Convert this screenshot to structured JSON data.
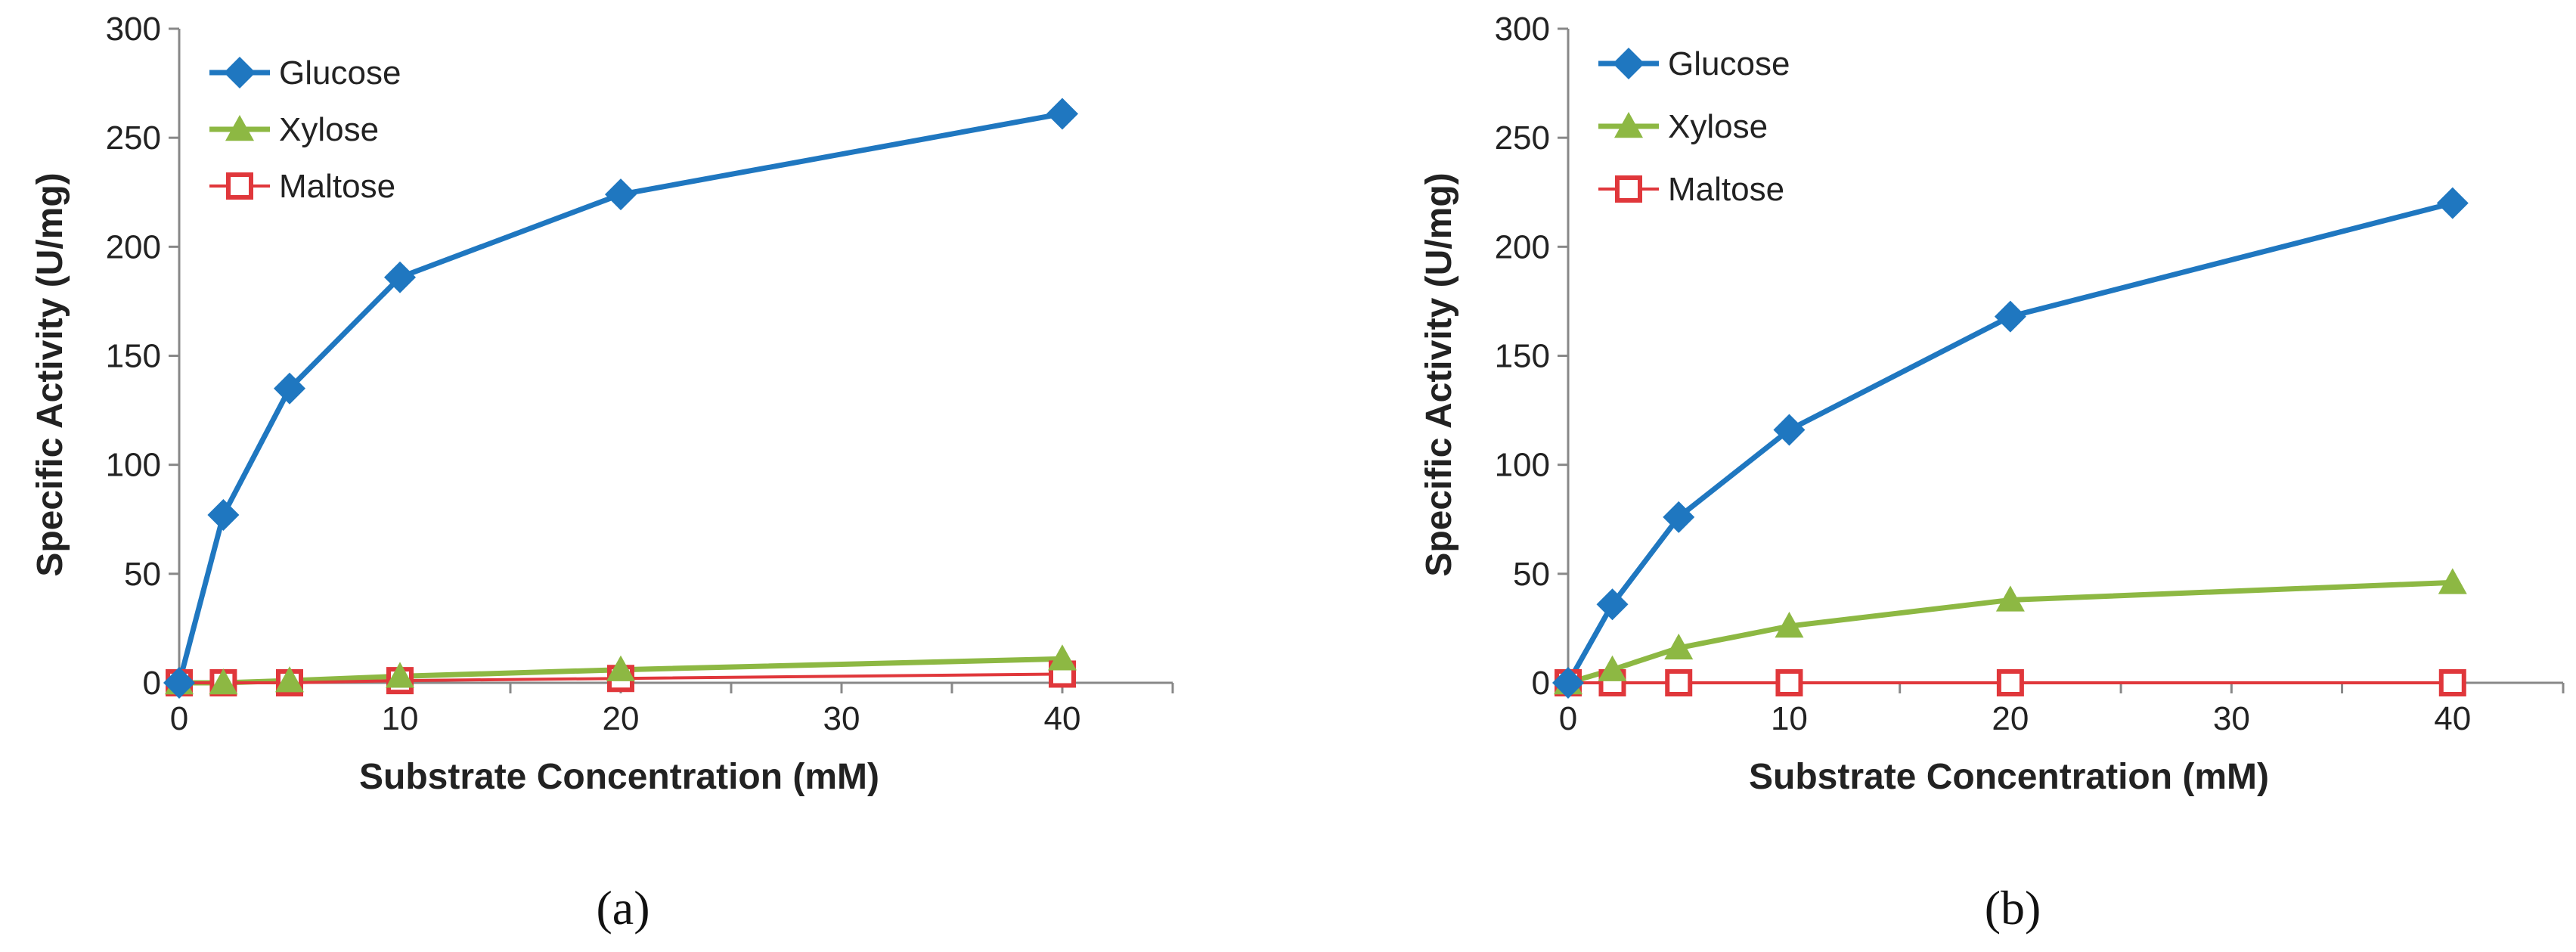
{
  "colors": {
    "glucose": "#1F77C0",
    "xylose": "#8DB843",
    "maltose": "#E0373B",
    "axis": "#888888"
  },
  "chart_data": [
    {
      "type": "line",
      "panel_label": "(a)",
      "xlabel": "Substrate Concentration (mM)",
      "ylabel": "Specific Activity (U/mg)",
      "xlim": [
        0,
        45
      ],
      "ylim": [
        0,
        300
      ],
      "x_ticks": [
        0,
        10,
        20,
        30,
        40
      ],
      "y_ticks": [
        0,
        50,
        100,
        150,
        200,
        250,
        300
      ],
      "legend_position": "top-left",
      "x": [
        0,
        2,
        5,
        10,
        20,
        40
      ],
      "series": [
        {
          "name": "Glucose",
          "marker": "diamond",
          "color_key": "glucose",
          "values": [
            0,
            77,
            135,
            186,
            224,
            261
          ]
        },
        {
          "name": "Xylose",
          "marker": "triangle",
          "color_key": "xylose",
          "values": [
            0,
            0,
            1,
            3,
            6,
            11
          ]
        },
        {
          "name": "Maltose",
          "marker": "square-open",
          "color_key": "maltose",
          "values": [
            0,
            0,
            0,
            1,
            2,
            4
          ]
        }
      ]
    },
    {
      "type": "line",
      "panel_label": "(b)",
      "xlabel": "Substrate Concentration (mM)",
      "ylabel": "Specific Activity (U/mg)",
      "xlim": [
        0,
        45
      ],
      "ylim": [
        0,
        300
      ],
      "x_ticks": [
        0,
        10,
        20,
        30,
        40
      ],
      "y_ticks": [
        0,
        50,
        100,
        150,
        200,
        250,
        300
      ],
      "legend_position": "top-left",
      "x": [
        0,
        2,
        5,
        10,
        20,
        40
      ],
      "series": [
        {
          "name": "Glucose",
          "marker": "diamond",
          "color_key": "glucose",
          "values": [
            0,
            36,
            76,
            116,
            168,
            220
          ]
        },
        {
          "name": "Xylose",
          "marker": "triangle",
          "color_key": "xylose",
          "values": [
            0,
            6,
            16,
            26,
            38,
            46
          ]
        },
        {
          "name": "Maltose",
          "marker": "square-open",
          "color_key": "maltose",
          "values": [
            0,
            0,
            0,
            0,
            0,
            0
          ]
        }
      ]
    }
  ]
}
